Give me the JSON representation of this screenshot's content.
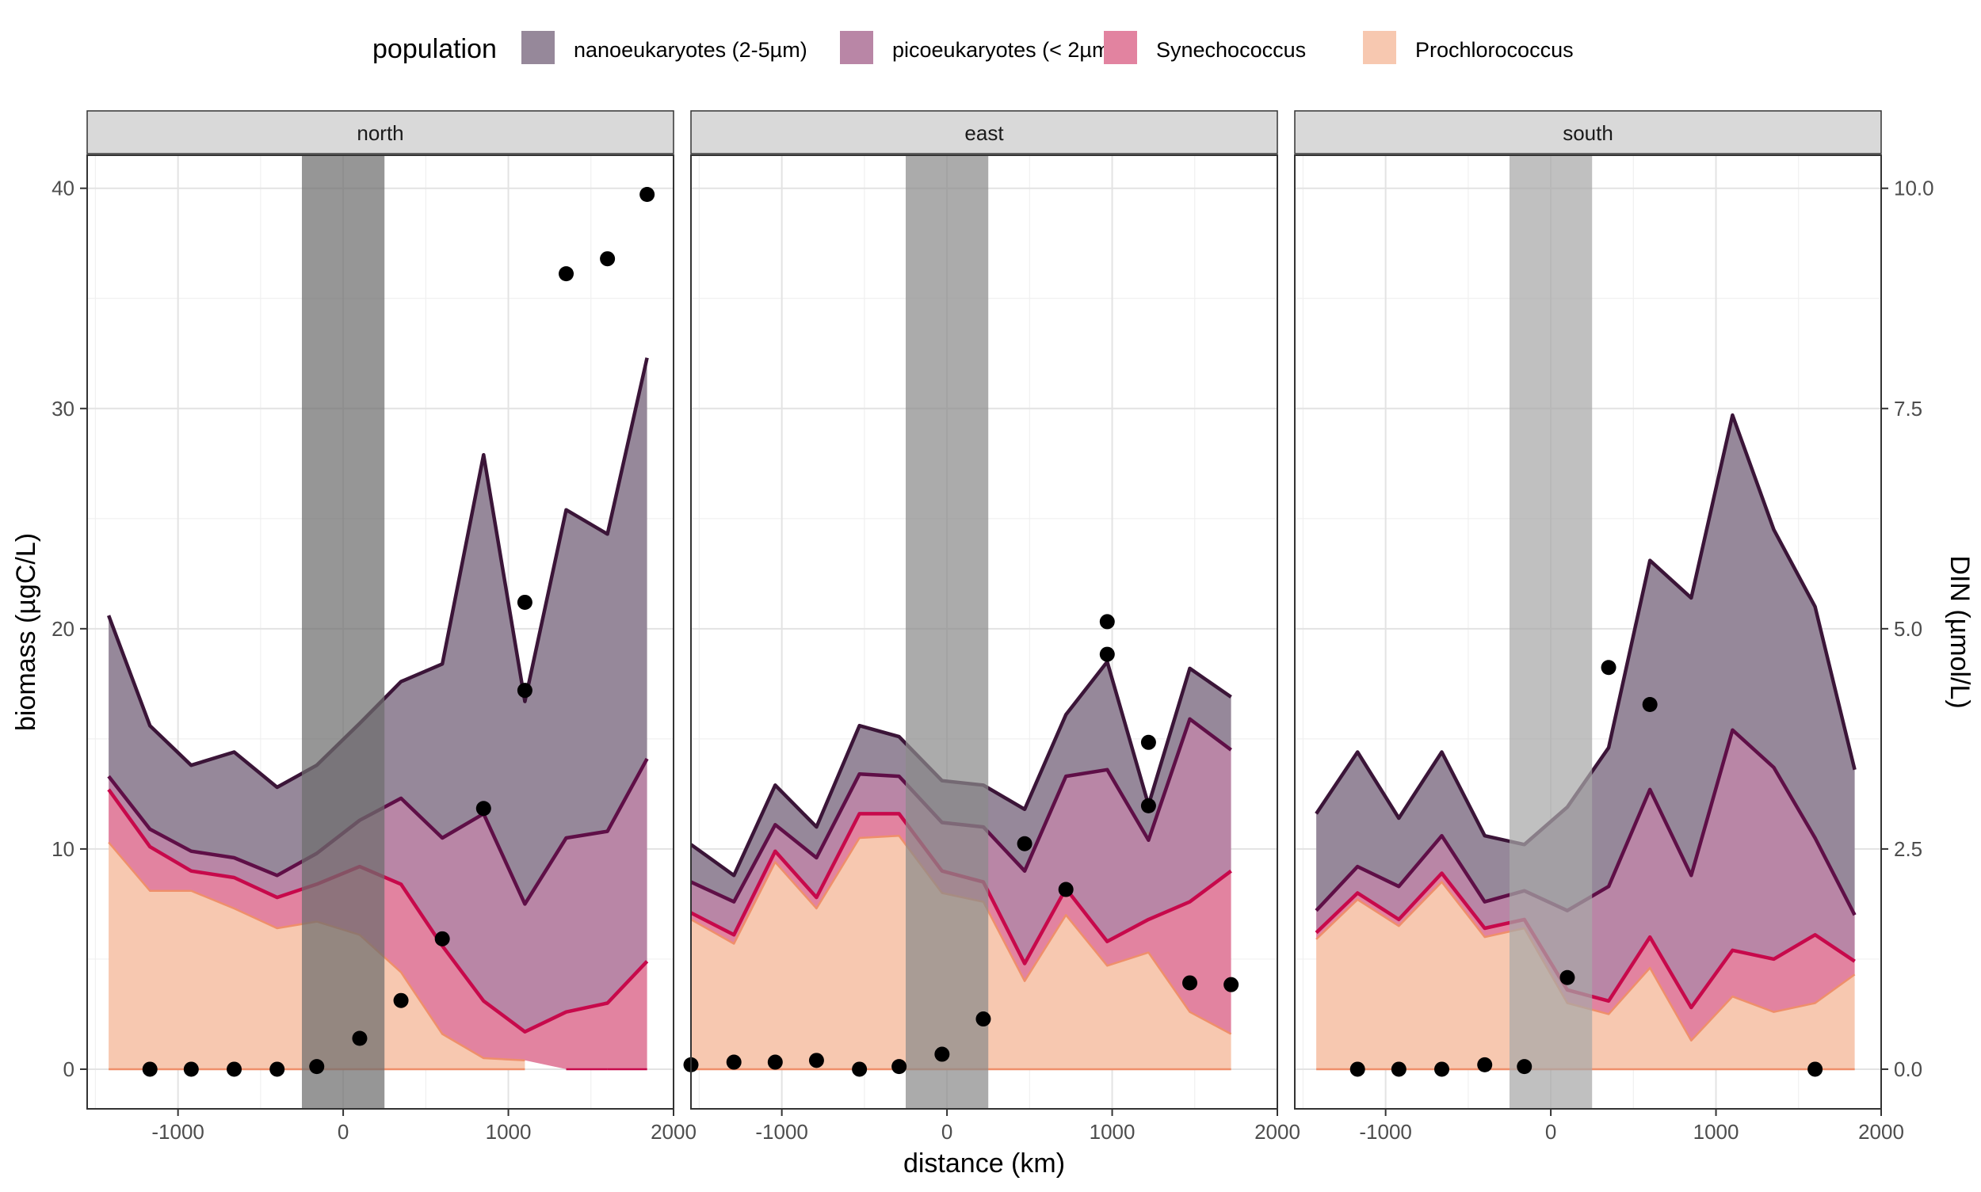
{
  "chart_data": {
    "type": "area",
    "xlabel": "distance (km)",
    "ylabel": "biomass (µgC/L)",
    "y2label": "DIN (µmol/L)",
    "xlim": [
      -1550,
      2000
    ],
    "ylim": [
      -1.8,
      41.5
    ],
    "x_ticks": [
      -1000,
      0,
      1000,
      2000
    ],
    "x_tick_labels": [
      "-1000",
      "0",
      "1000",
      "2000"
    ],
    "y_ticks": [
      0,
      10,
      20,
      30,
      40
    ],
    "y_tick_labels": [
      "0",
      "10",
      "20",
      "30",
      "40"
    ],
    "y2_ticks": [
      0,
      2.5,
      5,
      7.5,
      10
    ],
    "y2_tick_labels": [
      "0.0",
      "2.5",
      "5.0",
      "7.5",
      "10.0"
    ],
    "y2_scale_factor": 4,
    "grid": true,
    "legend": {
      "title": "population",
      "position": "top",
      "items": [
        {
          "label": "nanoeukaryotes (2-5µm)",
          "fill": "#96889a",
          "line": "#3b1538"
        },
        {
          "label": "picoeukaryotes (< 2µm)",
          "fill": "#b986a6",
          "line": "#5f0f47"
        },
        {
          "label": "Synechococcus",
          "fill": "#e283a0",
          "line": "#c7094b"
        },
        {
          "label": "Prochlorococcus",
          "fill": "#f7c8b0",
          "line": "#ef8f6b"
        }
      ]
    },
    "panels": [
      {
        "name": "north",
        "front_band": [
          -250,
          250
        ],
        "band_color": "#6e6e6e",
        "x": [
          -1420,
          -1170,
          -920,
          -660,
          -400,
          -160,
          100,
          350,
          600,
          850,
          1100,
          1350,
          1600,
          1840
        ],
        "cumulative": {
          "Prochlorococcus": [
            10.3,
            8.1,
            8.1,
            7.3,
            6.4,
            6.7,
            6.1,
            4.4,
            1.6,
            0.5,
            0.4,
            null,
            null,
            null
          ],
          "Synechococcus": [
            12.7,
            10.1,
            9.0,
            8.7,
            7.8,
            8.4,
            9.2,
            8.4,
            5.6,
            3.1,
            1.7,
            2.6,
            3.0,
            4.9
          ],
          "picoeukaryotes": [
            13.3,
            10.9,
            9.9,
            9.6,
            8.8,
            9.8,
            11.3,
            12.3,
            10.5,
            11.6,
            7.5,
            10.5,
            10.8,
            14.1
          ],
          "nanoeukaryotes": [
            20.6,
            15.6,
            13.8,
            14.4,
            12.8,
            13.8,
            15.7,
            17.6,
            18.4,
            27.9,
            16.7,
            25.4,
            24.3,
            32.3
          ]
        },
        "din_points": {
          "x": [
            -1170,
            -920,
            -660,
            -400,
            -160,
            100,
            350,
            600,
            850,
            1100,
            1100,
            1350,
            1600,
            1840
          ],
          "y": [
            0.0,
            0.0,
            0.0,
            0.0,
            0.03,
            0.35,
            0.78,
            1.48,
            2.96,
            5.3,
            4.3,
            9.03,
            9.2,
            9.93
          ]
        }
      },
      {
        "name": "east",
        "front_band": [
          -250,
          250
        ],
        "band_color": "#8a8a8a",
        "x": [
          -1550,
          -1290,
          -1040,
          -790,
          -530,
          -290,
          -30,
          220,
          470,
          720,
          970,
          1220,
          1470,
          1720
        ],
        "cumulative": {
          "Prochlorococcus": [
            6.8,
            5.7,
            9.4,
            7.3,
            10.5,
            10.6,
            8.0,
            7.6,
            4.0,
            7.0,
            4.7,
            5.3,
            2.6,
            1.6
          ],
          "Synechococcus": [
            7.1,
            6.1,
            9.9,
            7.8,
            11.6,
            11.6,
            9.0,
            8.5,
            4.8,
            8.2,
            5.8,
            6.8,
            7.6,
            9.0
          ],
          "picoeukaryotes": [
            8.5,
            7.6,
            11.1,
            9.6,
            13.4,
            13.3,
            11.2,
            11.0,
            9.0,
            13.3,
            13.6,
            10.4,
            15.9,
            14.5
          ],
          "nanoeukaryotes": [
            10.2,
            8.8,
            12.9,
            11.0,
            15.6,
            15.1,
            13.1,
            12.9,
            11.8,
            16.1,
            18.5,
            12.0,
            18.2,
            16.9
          ]
        },
        "din_points": {
          "x": [
            -1550,
            -1290,
            -1040,
            -790,
            -530,
            -290,
            -30,
            220,
            470,
            720,
            970,
            970,
            1220,
            1220,
            1470,
            1720
          ],
          "y": [
            0.05,
            0.08,
            0.08,
            0.1,
            0.0,
            0.03,
            0.17,
            0.57,
            2.56,
            2.04,
            5.08,
            4.71,
            3.71,
            2.99,
            0.98,
            0.96
          ]
        }
      },
      {
        "name": "south",
        "front_band": [
          -250,
          250
        ],
        "band_color": "#a8a8a8",
        "x": [
          -1420,
          -1170,
          -920,
          -660,
          -400,
          -160,
          100,
          350,
          600,
          850,
          1100,
          1350,
          1600,
          1840
        ],
        "cumulative": {
          "Prochlorococcus": [
            5.9,
            7.7,
            6.5,
            8.5,
            6.0,
            6.4,
            3.0,
            2.5,
            4.6,
            1.3,
            3.3,
            2.6,
            3.0,
            4.3
          ],
          "Synechococcus": [
            6.2,
            8.0,
            6.8,
            8.9,
            6.4,
            6.8,
            3.6,
            3.1,
            6.0,
            2.8,
            5.4,
            5.0,
            6.1,
            4.9
          ],
          "picoeukaryotes": [
            7.2,
            9.2,
            8.3,
            10.6,
            7.6,
            8.1,
            7.2,
            8.3,
            12.7,
            8.8,
            15.4,
            13.7,
            10.5,
            7.0
          ],
          "nanoeukaryotes": [
            11.6,
            14.4,
            11.4,
            14.4,
            10.6,
            10.2,
            11.9,
            14.6,
            23.1,
            21.4,
            29.7,
            24.5,
            21.0,
            13.6
          ]
        },
        "din_points": {
          "x": [
            -1170,
            -920,
            -660,
            -400,
            -160,
            100,
            350,
            600,
            1600
          ],
          "y": [
            0.0,
            0.0,
            0.0,
            0.05,
            0.03,
            1.04,
            4.56,
            4.14,
            0.0
          ]
        }
      }
    ]
  }
}
